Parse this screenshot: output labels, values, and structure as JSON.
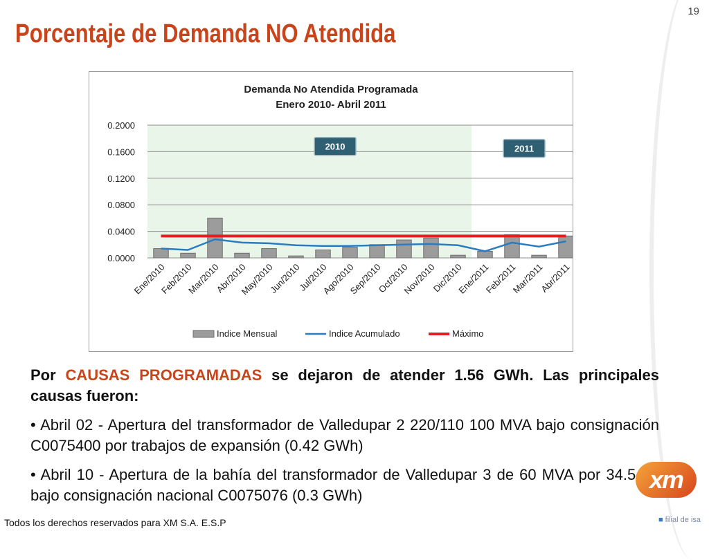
{
  "slide": {
    "page_number": "19",
    "title": "Porcentaje de Demanda NO Atendida",
    "footer": "Todos los derechos reservados para XM S.A. E.S.P",
    "logo": {
      "mark": "xm",
      "tagline": "filial de isa",
      "icon": "isa-logo-icon"
    }
  },
  "text": {
    "lead_prefix": "Por ",
    "lead_highlight": "CAUSAS PROGRAMADAS",
    "lead_suffix": " se dejaron de atender  1.56 GWh. Las principales causas fueron:",
    "bullets": [
      "• Abril 02 - Apertura del transformador de Valledupar 2 220/110 100 MVA bajo consignación C0075400 por trabajos de expansión (0.42 GWh)",
      "• Abril 10 - Apertura de la bahía del transformador de Valledupar 3 de 60 MVA por 34.5 kV bajo consignación nacional C0075076 (0.3  GWh)"
    ]
  },
  "colors": {
    "accent": "#c8441a",
    "bar": "#9c9c9c",
    "acumulado": "#2a7bbf",
    "maximo": "#e02020",
    "band_2010": "#e8f5e8",
    "badge": "#2f5f73"
  },
  "chart_data": {
    "type": "bar",
    "title": "Demanda No Atendida Programada",
    "subtitle": "Enero 2010- Abril 2011",
    "categories": [
      "Ene/2010",
      "Feb/2010",
      "Mar/2010",
      "Abr/2010",
      "May/2010",
      "Jun/2010",
      "Jul/2010",
      "Ago/2010",
      "Sep/2010",
      "Oct/2010",
      "Nov/2010",
      "Dic/2010",
      "Ene/2011",
      "Feb/2011",
      "Mar/2011",
      "Abr/2011"
    ],
    "series": [
      {
        "name": "Indice Mensual",
        "kind": "bar",
        "values": [
          0.014,
          0.007,
          0.06,
          0.007,
          0.014,
          0.003,
          0.012,
          0.016,
          0.02,
          0.027,
          0.03,
          0.004,
          0.01,
          0.035,
          0.004,
          0.033
        ]
      },
      {
        "name": "Indice Acumulado",
        "kind": "line",
        "values": [
          0.014,
          0.012,
          0.028,
          0.023,
          0.022,
          0.019,
          0.018,
          0.018,
          0.019,
          0.02,
          0.021,
          0.019,
          0.01,
          0.023,
          0.017,
          0.025
        ]
      },
      {
        "name": "Máximo",
        "kind": "line",
        "values": [
          0.033,
          0.033,
          0.033,
          0.033,
          0.033,
          0.033,
          0.033,
          0.033,
          0.033,
          0.033,
          0.033,
          0.033,
          0.033,
          0.033,
          0.033,
          0.033
        ]
      }
    ],
    "y_ticks": [
      "0.0000",
      "0.0400",
      "0.0800",
      "0.1200",
      "0.1600",
      "0.2000"
    ],
    "ylim": [
      0,
      0.2
    ],
    "grid": true,
    "legend_position": "bottom",
    "annotations": [
      {
        "label": "2010",
        "category": "Jul/2010",
        "value": 0.168
      },
      {
        "label": "2011",
        "category": "Feb/2011",
        "value": 0.165
      }
    ],
    "shaded_period": {
      "label": "2010",
      "from": "Ene/2010",
      "to": "Dic/2010"
    }
  }
}
